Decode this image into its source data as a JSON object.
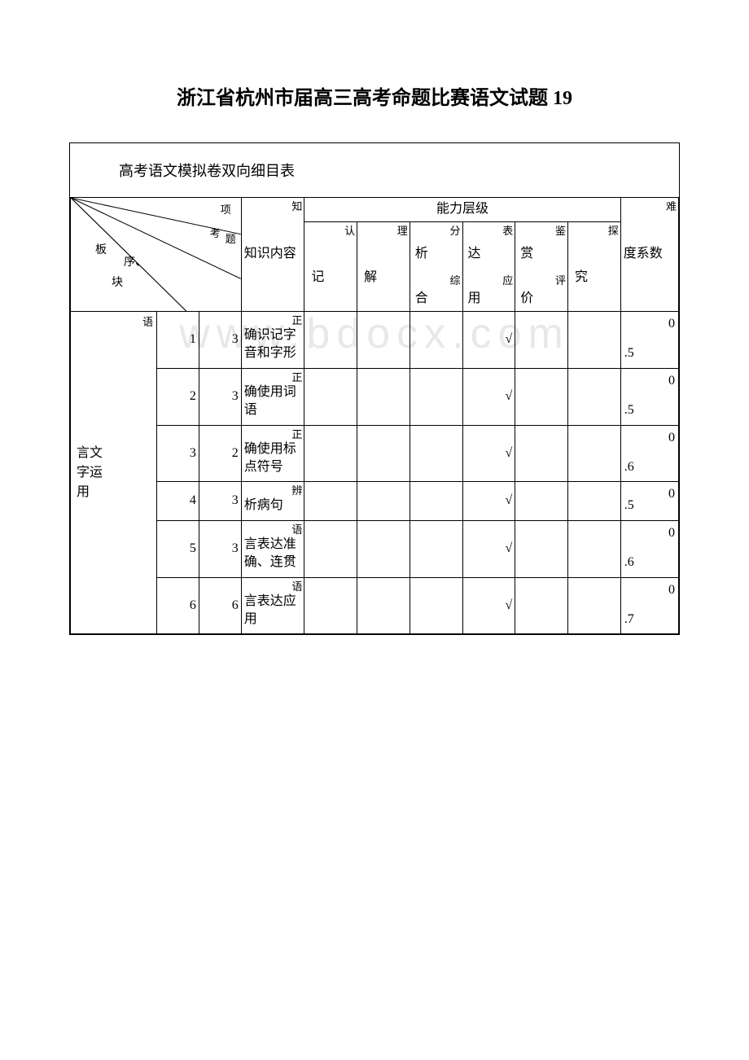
{
  "title": "浙江省杭州市届高三高考命题比赛语文试题 19",
  "subtitle": "高考语文模拟卷双向细目表",
  "watermark": "www.bdocx.com",
  "diagonal_header": {
    "top_right": "项",
    "upper_mid": "考",
    "right_edge": "题",
    "mid": "序、",
    "left_mid": "板",
    "bottom": "块"
  },
  "column_headers": {
    "knowledge": "知识内容",
    "ability_group": "能力层级",
    "ability1_top": "认",
    "ability1_bot": "记",
    "ability2_top": "理",
    "ability2_bot": "解",
    "ability3_top": "分",
    "ability3_mid": "析",
    "ability3_bot1": "综",
    "ability3_bot2": "合",
    "ability4_top": "表",
    "ability4_mid": "达",
    "ability4_bot1": "应",
    "ability4_bot2": "用",
    "ability5_top": "鉴",
    "ability5_mid": "赏",
    "ability5_bot1": "评",
    "ability5_bot2": "价",
    "ability6_top": "探",
    "ability6_bot": "究",
    "difficulty_top": "难",
    "difficulty": "度系数"
  },
  "section_label": "语言文字运用",
  "rows": [
    {
      "q": "1",
      "score": "3",
      "content_top": "正",
      "content": "确识记字音和字形",
      "marks": [
        "",
        "",
        "",
        "√",
        "",
        ""
      ],
      "diff_left": ".5",
      "diff_right": "0"
    },
    {
      "q": "2",
      "score": "3",
      "content_top": "正",
      "content": "确使用词语",
      "marks": [
        "",
        "",
        "",
        "√",
        "",
        ""
      ],
      "diff_left": ".5",
      "diff_right": "0"
    },
    {
      "q": "3",
      "score": "2",
      "content_top": "正",
      "content": "确使用标点符号",
      "marks": [
        "",
        "",
        "",
        "√",
        "",
        ""
      ],
      "diff_left": ".6",
      "diff_right": "0"
    },
    {
      "q": "4",
      "score": "3",
      "content_top": "辨",
      "content": "析病句",
      "marks": [
        "",
        "",
        "",
        "√",
        "",
        ""
      ],
      "diff_left": ".5",
      "diff_right": "0"
    },
    {
      "q": "5",
      "score": "3",
      "content_top": "语",
      "content": "言表达准确、连贯",
      "marks": [
        "",
        "",
        "",
        "√",
        "",
        ""
      ],
      "diff_left": ".6",
      "diff_right": "0"
    },
    {
      "q": "6",
      "score": "6",
      "content_top": "语",
      "content": "言表达应用",
      "marks": [
        "",
        "",
        "",
        "√",
        "",
        ""
      ],
      "diff_left": ".7",
      "diff_right": "0"
    }
  ],
  "colors": {
    "text": "#000000",
    "border": "#000000",
    "background": "#ffffff",
    "watermark": "#e8e8e8"
  }
}
